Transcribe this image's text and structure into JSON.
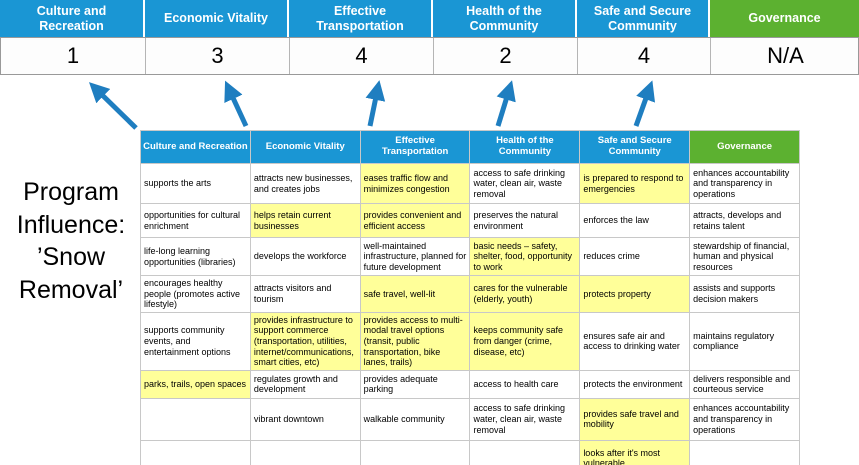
{
  "slide": {
    "title": "Program Influence: ’Snow Removal’"
  },
  "colors": {
    "goal_blue": "#1a96d4",
    "governance_green": "#5cb130",
    "highlight_yellow": "#ffff99",
    "arrow_blue": "#1f7ec0"
  },
  "summary": {
    "columns": [
      {
        "label": "Culture and Recreation",
        "score": "1"
      },
      {
        "label": "Economic Vitality",
        "score": "3"
      },
      {
        "label": "Effective Transportation",
        "score": "4"
      },
      {
        "label": "Health of the Community",
        "score": "2"
      },
      {
        "label": "Safe and Secure Community",
        "score": "4"
      },
      {
        "label": "Governance",
        "score": "N/A"
      }
    ]
  },
  "matrix": {
    "headers": [
      "Culture and Recreation",
      "Economic Vitality",
      "Effective Transportation",
      "Health of the Community",
      "Safe and Secure Community",
      "Governance"
    ],
    "rows": [
      [
        {
          "text": "supports the arts",
          "hl": false
        },
        {
          "text": "attracts new businesses, and creates jobs",
          "hl": false
        },
        {
          "text": "eases traffic flow and minimizes congestion",
          "hl": true
        },
        {
          "text": "access to safe drinking water, clean air, waste removal",
          "hl": false
        },
        {
          "text": "is prepared to respond to emergencies",
          "hl": true
        },
        {
          "text": "enhances accountability and transparency in operations",
          "hl": false
        }
      ],
      [
        {
          "text": "opportunities for cultural enrichment",
          "hl": false
        },
        {
          "text": "helps retain current businesses",
          "hl": true
        },
        {
          "text": "provides convenient and efficient access",
          "hl": true
        },
        {
          "text": "preserves the natural environment",
          "hl": false
        },
        {
          "text": "enforces the law",
          "hl": false
        },
        {
          "text": "attracts, develops and retains talent",
          "hl": false
        }
      ],
      [
        {
          "text": "life-long learning opportunities (libraries)",
          "hl": false
        },
        {
          "text": "develops the workforce",
          "hl": false
        },
        {
          "text": "well-maintained infrastructure, planned for future development",
          "hl": false
        },
        {
          "text": "basic needs – safety, shelter, food, opportunity to work",
          "hl": true
        },
        {
          "text": "reduces crime",
          "hl": false
        },
        {
          "text": "stewardship of financial, human and physical resources",
          "hl": false
        }
      ],
      [
        {
          "text": "encourages healthy people (promotes active lifestyle)",
          "hl": false
        },
        {
          "text": "attracts visitors and tourism",
          "hl": false
        },
        {
          "text": "safe travel, well-lit",
          "hl": true
        },
        {
          "text": "cares for the vulnerable (elderly, youth)",
          "hl": true
        },
        {
          "text": "protects property",
          "hl": true
        },
        {
          "text": "assists and supports decision makers",
          "hl": false
        }
      ],
      [
        {
          "text": "supports community events, and entertainment options",
          "hl": false
        },
        {
          "text": "provides infrastructure to support commerce (transportation, utilities, internet/communications, smart cities, etc)",
          "hl": true
        },
        {
          "text": "provides access to multi-modal travel options (transit, public transportation, bike lanes, trails)",
          "hl": true
        },
        {
          "text": "keeps community safe from danger (crime, disease, etc)",
          "hl": true
        },
        {
          "text": "ensures safe air and access to drinking water",
          "hl": false
        },
        {
          "text": "maintains regulatory compliance",
          "hl": false
        }
      ],
      [
        {
          "text": "parks, trails, open spaces",
          "hl": true
        },
        {
          "text": "regulates growth and development",
          "hl": false
        },
        {
          "text": "provides adequate parking",
          "hl": false
        },
        {
          "text": "access to health care",
          "hl": false
        },
        {
          "text": "protects the environment",
          "hl": false
        },
        {
          "text": "delivers responsible and courteous service",
          "hl": false
        }
      ],
      [
        {
          "text": "",
          "hl": false
        },
        {
          "text": "vibrant downtown",
          "hl": false
        },
        {
          "text": "walkable community",
          "hl": false
        },
        {
          "text": "access to safe drinking water, clean air, waste removal",
          "hl": false
        },
        {
          "text": "provides safe travel and mobility",
          "hl": true
        },
        {
          "text": "enhances accountability and transparency in operations",
          "hl": false
        }
      ],
      [
        {
          "text": "",
          "hl": false
        },
        {
          "text": "",
          "hl": false
        },
        {
          "text": "",
          "hl": false
        },
        {
          "text": "",
          "hl": false
        },
        {
          "text": "looks after it's most vulnerable",
          "hl": true
        },
        {
          "text": "",
          "hl": false
        }
      ]
    ]
  }
}
